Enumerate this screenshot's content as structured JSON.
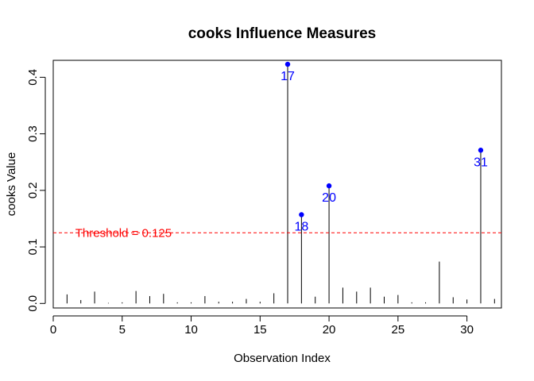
{
  "chart_data": {
    "type": "stem",
    "title": "cooks Influence Measures",
    "xlabel": "Observation Index",
    "ylabel": "cooks Value",
    "xlim": [
      0,
      32.5
    ],
    "ylim": [
      -0.008,
      0.43
    ],
    "x_ticks": [
      0,
      5,
      10,
      15,
      20,
      25,
      30
    ],
    "y_ticks": [
      0.0,
      0.1,
      0.2,
      0.3,
      0.4
    ],
    "y_tick_labels": [
      "0.0",
      "0.1",
      "0.2",
      "0.3",
      "0.4"
    ],
    "x": [
      1,
      2,
      3,
      4,
      5,
      6,
      7,
      8,
      9,
      10,
      11,
      12,
      13,
      14,
      15,
      16,
      17,
      18,
      19,
      20,
      21,
      22,
      23,
      24,
      25,
      26,
      27,
      28,
      29,
      30,
      31,
      32
    ],
    "values": [
      0.016,
      0.006,
      0.021,
      0.001,
      0.002,
      0.022,
      0.013,
      0.017,
      0.002,
      0.002,
      0.013,
      0.003,
      0.003,
      0.008,
      0.003,
      0.018,
      0.423,
      0.157,
      0.012,
      0.208,
      0.028,
      0.021,
      0.028,
      0.012,
      0.015,
      0.002,
      0.002,
      0.074,
      0.011,
      0.007,
      0.271,
      0.008
    ],
    "threshold": {
      "value": 0.125,
      "label": "Threshold = 0.125",
      "color": "#ff0000"
    },
    "highlighted": [
      {
        "x": 17,
        "value": 0.423,
        "label": "17"
      },
      {
        "x": 18,
        "value": 0.157,
        "label": "18"
      },
      {
        "x": 20,
        "value": 0.208,
        "label": "20"
      },
      {
        "x": 31,
        "value": 0.271,
        "label": "31"
      }
    ],
    "highlight_color": "#0000ff",
    "stem_color": "#000000",
    "grid": false
  }
}
